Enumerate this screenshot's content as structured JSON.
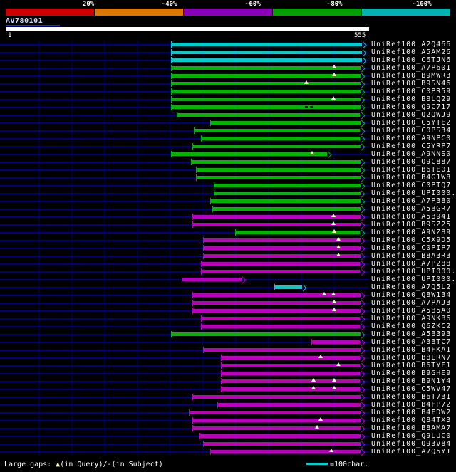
{
  "query": {
    "name": "AV780101",
    "start_label": "1",
    "end_label": "555"
  },
  "footer": {
    "gaps_prefix": "Large gaps: ",
    "gaps_marker": "▲",
    "gaps_suffix": "(in Query)/-(in Subject)",
    "scale_label": "=100char."
  },
  "chart_data": {
    "type": "alignment-overview",
    "title": "AV780101",
    "query_length": 555,
    "xlim": [
      1,
      555
    ],
    "identity_scale": {
      "labels": [
        "20%",
        "~40%",
        "~60%",
        "~80%",
        "~100%"
      ],
      "colors": [
        "#cc0000",
        "#dd7700",
        "#8800bb",
        "#00a000",
        "#00b2b2"
      ]
    },
    "bar_colors": {
      "cyan": "#00cccc",
      "green": "#00b400",
      "magenta": "#bb00bb"
    },
    "marker_color": "#ffffcc",
    "hits": [
      {
        "id": "UniRef100_A2Q466",
        "color": "cyan",
        "from": 252,
        "to": 551
      },
      {
        "id": "UniRef100_A5AM26",
        "color": "cyan",
        "from": 252,
        "to": 551
      },
      {
        "id": "UniRef100_C6TJN6",
        "color": "cyan",
        "from": 252,
        "to": 551
      },
      {
        "id": "UniRef100_A7P601",
        "color": "green",
        "from": 252,
        "to": 548,
        "query_gaps": [
          502
        ]
      },
      {
        "id": "UniRef100_B9MWR3",
        "color": "green",
        "from": 252,
        "to": 548,
        "query_gaps": [
          502
        ]
      },
      {
        "id": "UniRef100_B9SN46",
        "color": "green",
        "from": 252,
        "to": 548,
        "query_gaps": [
          459
        ]
      },
      {
        "id": "UniRef100_C0PR59",
        "color": "green",
        "from": 252,
        "to": 548
      },
      {
        "id": "UniRef100_B8LQ29",
        "color": "green",
        "from": 252,
        "to": 548,
        "query_gaps": [
          500
        ]
      },
      {
        "id": "UniRef100_Q9C717",
        "color": "green",
        "from": 252,
        "to": 548,
        "subject_gaps": [
          459,
          467
        ]
      },
      {
        "id": "UniRef100_Q2QWJ9",
        "color": "green",
        "from": 261,
        "to": 548
      },
      {
        "id": "UniRef100_C5YTE2",
        "color": "green",
        "from": 312,
        "to": 548
      },
      {
        "id": "UniRef100_C0PS34",
        "color": "green",
        "from": 287,
        "to": 548
      },
      {
        "id": "UniRef100_A9NPC0",
        "color": "green",
        "from": 298,
        "to": 548
      },
      {
        "id": "UniRef100_C5YRP7",
        "color": "green",
        "from": 285,
        "to": 548
      },
      {
        "id": "UniRef100_A9NNS0",
        "color": "green",
        "from": 252,
        "to": 497,
        "query_gaps": [
          468
        ]
      },
      {
        "id": "UniRef100_Q9C887",
        "color": "green",
        "from": 283,
        "to": 548
      },
      {
        "id": "UniRef100_B6TE01",
        "color": "green",
        "from": 291,
        "to": 548
      },
      {
        "id": "UniRef100_B4G1W8",
        "color": "green",
        "from": 291,
        "to": 548
      },
      {
        "id": "UniRef100_C0PTQ7",
        "color": "green",
        "from": 318,
        "to": 548
      },
      {
        "id": "UniRef100_UPI000..",
        "color": "green",
        "from": 318,
        "to": 548
      },
      {
        "id": "UniRef100_A7P380",
        "color": "green",
        "from": 312,
        "to": 548
      },
      {
        "id": "UniRef100_A5BGR7",
        "color": "green",
        "from": 316,
        "to": 548
      },
      {
        "id": "UniRef100_A5B941",
        "color": "magenta",
        "from": 285,
        "to": 548,
        "query_gaps": [
          500
        ]
      },
      {
        "id": "UniRef100_B9SZ25",
        "color": "magenta",
        "from": 285,
        "to": 548,
        "query_gaps": [
          500
        ]
      },
      {
        "id": "UniRef100_A9NZ89",
        "color": "green",
        "from": 350,
        "to": 548,
        "query_gaps": [
          502
        ]
      },
      {
        "id": "UniRef100_C5X9D5",
        "color": "magenta",
        "from": 301,
        "to": 548,
        "query_gaps": [
          508
        ]
      },
      {
        "id": "UniRef100_C0PIP7",
        "color": "magenta",
        "from": 301,
        "to": 548,
        "query_gaps": [
          508
        ]
      },
      {
        "id": "UniRef100_B8A3R3",
        "color": "magenta",
        "from": 301,
        "to": 548,
        "query_gaps": [
          508
        ]
      },
      {
        "id": "UniRef100_A7P288",
        "color": "magenta",
        "from": 298,
        "to": 548
      },
      {
        "id": "UniRef100_UPI000..",
        "color": "magenta",
        "from": 298,
        "to": 548
      },
      {
        "id": "UniRef100_UPI000..",
        "color": "magenta",
        "from": 269,
        "to": 367
      },
      {
        "id": "UniRef100_A7Q5L2",
        "color": "cyan",
        "from": 410,
        "to": 459
      },
      {
        "id": "UniRef100_Q8W134",
        "color": "magenta",
        "from": 285,
        "to": 548,
        "query_gaps": [
          486,
          500
        ]
      },
      {
        "id": "UniRef100_A7PAJ3",
        "color": "magenta",
        "from": 285,
        "to": 548,
        "query_gaps": [
          502
        ]
      },
      {
        "id": "UniRef100_A5B5A0",
        "color": "magenta",
        "from": 285,
        "to": 548,
        "query_gaps": [
          502
        ]
      },
      {
        "id": "UniRef100_A9NKB6",
        "color": "magenta",
        "from": 298,
        "to": 548
      },
      {
        "id": "UniRef100_Q6ZKC2",
        "color": "magenta",
        "from": 298,
        "to": 548
      },
      {
        "id": "UniRef100_A5B393",
        "color": "green",
        "from": 252,
        "to": 548
      },
      {
        "id": "UniRef100_A3BTC7",
        "color": "magenta",
        "from": 467,
        "to": 548
      },
      {
        "id": "UniRef100_B4FKA1",
        "color": "magenta",
        "from": 301,
        "to": 548
      },
      {
        "id": "UniRef100_B8LRN7",
        "color": "magenta",
        "from": 329,
        "to": 548,
        "query_gaps": [
          481
        ]
      },
      {
        "id": "UniRef100_B6TYE1",
        "color": "magenta",
        "from": 329,
        "to": 548,
        "query_gaps": [
          508
        ]
      },
      {
        "id": "UniRef100_B9GHE9",
        "color": "magenta",
        "from": 329,
        "to": 548
      },
      {
        "id": "UniRef100_B9N1Y4",
        "color": "magenta",
        "from": 329,
        "to": 548,
        "query_gaps": [
          470,
          502
        ]
      },
      {
        "id": "UniRef100_C5WV47",
        "color": "magenta",
        "from": 329,
        "to": 548,
        "query_gaps": [
          470,
          502
        ]
      },
      {
        "id": "UniRef100_B6T731",
        "color": "magenta",
        "from": 285,
        "to": 548
      },
      {
        "id": "UniRef100_B4FP72",
        "color": "magenta",
        "from": 323,
        "to": 548
      },
      {
        "id": "UniRef100_B4FDW2",
        "color": "magenta",
        "from": 280,
        "to": 548
      },
      {
        "id": "UniRef100_Q84TX3",
        "color": "magenta",
        "from": 285,
        "to": 548,
        "query_gaps": [
          481
        ]
      },
      {
        "id": "UniRef100_B8AMA7",
        "color": "magenta",
        "from": 285,
        "to": 548,
        "query_gaps": [
          476
        ]
      },
      {
        "id": "UniRef100_Q9LUC0",
        "color": "magenta",
        "from": 296,
        "to": 548
      },
      {
        "id": "UniRef100_Q93V84",
        "color": "magenta",
        "from": 301,
        "to": 548
      },
      {
        "id": "UniRef100_A7Q5Y1",
        "color": "magenta",
        "from": 312,
        "to": 548,
        "query_gaps": [
          497
        ]
      }
    ]
  }
}
